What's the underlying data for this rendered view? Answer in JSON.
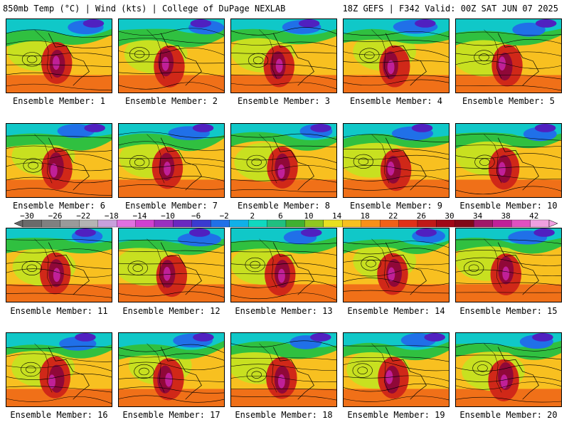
{
  "header": {
    "left": "850mb Temp (°C) | Wind (kts) | College of DuPage NEXLAB",
    "right": "18Z GEFS | F342 Valid: 00Z SAT JUN 07 2025"
  },
  "members": [
    "Ensemble Member: 1",
    "Ensemble Member: 2",
    "Ensemble Member: 3",
    "Ensemble Member: 4",
    "Ensemble Member: 5",
    "Ensemble Member: 6",
    "Ensemble Member: 7",
    "Ensemble Member: 8",
    "Ensemble Member: 9",
    "Ensemble Member: 10",
    "Ensemble Member: 11",
    "Ensemble Member: 12",
    "Ensemble Member: 13",
    "Ensemble Member: 14",
    "Ensemble Member: 15",
    "Ensemble Member: 16",
    "Ensemble Member: 17",
    "Ensemble Member: 18",
    "Ensemble Member: 19",
    "Ensemble Member: 20"
  ],
  "colorbar": {
    "labels": [
      "−30",
      "−26",
      "−22",
      "−18",
      "−14",
      "−10",
      "−6",
      "−2",
      "2",
      "6",
      "10",
      "14",
      "18",
      "22",
      "26",
      "30",
      "34",
      "38",
      "42"
    ],
    "colors": [
      "#6a6a6a",
      "#808080",
      "#9a9a9a",
      "#b4b4b4",
      "#c8a0dc",
      "#e070e0",
      "#d040d0",
      "#9a30c0",
      "#6a28c0",
      "#3a3ad0",
      "#2070e8",
      "#10b0e8",
      "#10d8c0",
      "#20c080",
      "#40b030",
      "#90c820",
      "#e8e020",
      "#f8c020",
      "#f89018",
      "#f06018",
      "#e03018",
      "#c01818",
      "#a00818",
      "#800818",
      "#a01868",
      "#c02098",
      "#e050c0",
      "#f0a0e0"
    ]
  },
  "palette": {
    "cold_deep": "#5020c0",
    "cold": "#2070e8",
    "cool": "#10c8c8",
    "mild": "#30c040",
    "warm_light": "#c8e020",
    "warm": "#f8c020",
    "hot": "#f07018",
    "very_hot": "#d02818",
    "extreme": "#900838",
    "hottest": "#c02098"
  }
}
